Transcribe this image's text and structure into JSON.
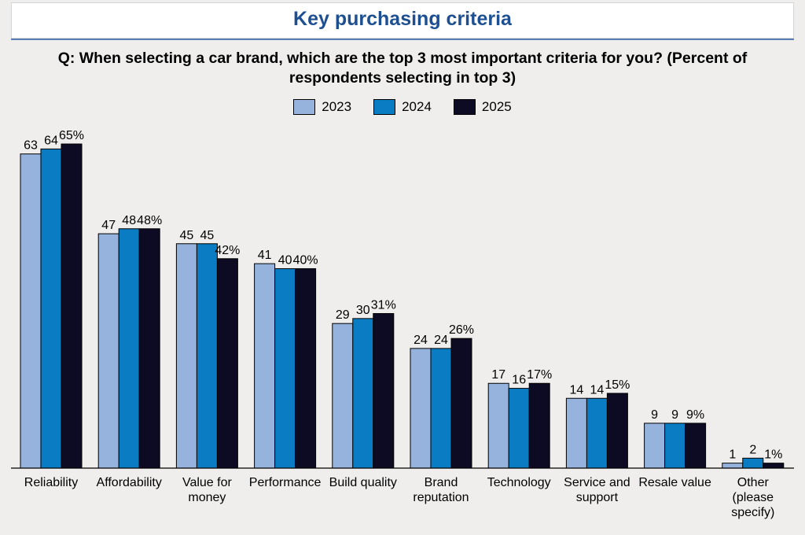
{
  "header": {
    "title": "Key purchasing criteria",
    "question": "Q: When selecting a car brand, which are the top 3 most important criteria for you? (Percent of respondents selecting in top 3)"
  },
  "legend": [
    {
      "label": "2023",
      "color": "#95b3dd"
    },
    {
      "label": "2024",
      "color": "#0a7cc4"
    },
    {
      "label": "2025",
      "color": "#0d0b24"
    }
  ],
  "chart_data": {
    "type": "bar",
    "title": "Key purchasing criteria",
    "ylabel": "Percent of respondents selecting in top 3",
    "ylim": [
      0,
      70
    ],
    "grid": false,
    "legend_position": "top-center",
    "categories": [
      [
        "Reliability"
      ],
      [
        "Affordability"
      ],
      [
        "Value for",
        "money"
      ],
      [
        "Performance"
      ],
      [
        "Build quality"
      ],
      [
        "Brand",
        "reputation"
      ],
      [
        "Technology"
      ],
      [
        "Service and",
        "support"
      ],
      [
        "Resale value"
      ],
      [
        "Other",
        "(please",
        "specify)"
      ]
    ],
    "series": [
      {
        "name": "2023",
        "color": "#95b3dd",
        "values": [
          63,
          47,
          45,
          41,
          29,
          24,
          17,
          14,
          9,
          1
        ],
        "labels": [
          "63",
          "47",
          "45",
          "41",
          "29",
          "24",
          "17",
          "14",
          "9",
          "1"
        ]
      },
      {
        "name": "2024",
        "color": "#0a7cc4",
        "values": [
          64,
          48,
          45,
          40,
          30,
          24,
          16,
          14,
          9,
          2
        ],
        "labels": [
          "64",
          "48",
          "45",
          "40",
          "30",
          "24",
          "16",
          "14",
          "9",
          "2"
        ]
      },
      {
        "name": "2025",
        "color": "#0d0b24",
        "values": [
          65,
          48,
          42,
          40,
          31,
          26,
          17,
          15,
          9,
          1
        ],
        "labels": [
          "65%",
          "48%",
          "42%",
          "40%",
          "31%",
          "26%",
          "17%",
          "15%",
          "9%",
          "1%"
        ]
      }
    ]
  }
}
